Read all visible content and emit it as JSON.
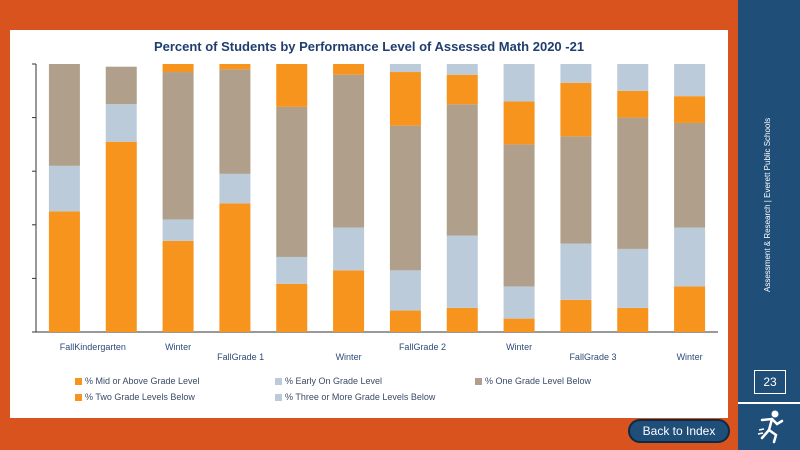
{
  "side_label": "Assessment & Research | Everett Public Schools",
  "page_number": "23",
  "back_button_label": "Back to Index",
  "logo_icon": "running-figure-logo-icon",
  "colors": {
    "mid_or_above": "#F7941D",
    "early_on": "#BCCBDA",
    "one_below": "#B0A08B",
    "two_below": "#F7941D",
    "three_below": "#BCCBDA",
    "frame": "#D9531E",
    "sidebar": "#1F4E79"
  },
  "chart_data": {
    "type": "bar",
    "stacked": true,
    "title": "Percent of Students by Performance Level of Assessed Math 2020 -21",
    "x_tick_labels": [
      {
        "text": "FallKindergarten",
        "row": 1,
        "at": 0.5
      },
      {
        "text": "Winter",
        "row": 1,
        "at": 2
      },
      {
        "text": "FallGrade 1",
        "row": 2,
        "at": 3.1
      },
      {
        "text": "Winter",
        "row": 2,
        "at": 5
      },
      {
        "text": "FallGrade 2",
        "row": 1,
        "at": 6.3
      },
      {
        "text": "Winter",
        "row": 1,
        "at": 8
      },
      {
        "text": "FallGrade 3",
        "row": 2,
        "at": 9.3
      },
      {
        "text": "Winter",
        "row": 2,
        "at": 11
      }
    ],
    "ylim": [
      0,
      100
    ],
    "grid": false,
    "legend_position": "bottom",
    "series": [
      {
        "name": "% Mid or Above Grade Level",
        "color_key": "mid_or_above",
        "values": [
          45,
          71,
          34,
          48,
          18,
          23,
          8,
          9,
          5,
          12,
          9,
          17
        ]
      },
      {
        "name": "% Early On Grade Level",
        "color_key": "early_on",
        "values": [
          17,
          14,
          8,
          11,
          10,
          16,
          15,
          27,
          12,
          21,
          22,
          22
        ]
      },
      {
        "name": "% One Grade Level Below",
        "color_key": "one_below",
        "values": [
          38,
          14,
          55,
          39,
          56,
          57,
          54,
          49,
          53,
          40,
          49,
          39
        ]
      },
      {
        "name": "% Two Grade Levels Below",
        "color_key": "two_below",
        "values": [
          0,
          0,
          3,
          2,
          16,
          4,
          20,
          11,
          16,
          20,
          10,
          10
        ]
      },
      {
        "name": "% Three or More Grade Levels Below",
        "color_key": "three_below",
        "values": [
          0,
          0,
          0,
          0,
          0,
          0,
          3,
          4,
          14,
          7,
          10,
          12
        ]
      }
    ]
  }
}
